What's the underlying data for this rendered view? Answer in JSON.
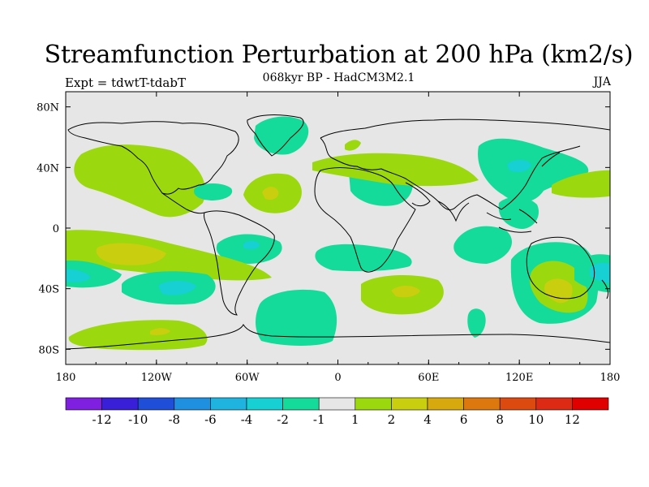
{
  "title": "Streamfunction Perturbation at 200 hPa (km2/s)",
  "subtitle": "068kyr BP - HadCM3M2.1",
  "left_note": "Expt = tdwtT-tdabT",
  "right_note": "JJA",
  "axes": {
    "x_ticks": [
      "180",
      "120W",
      "60W",
      "0",
      "60E",
      "120E",
      "180"
    ],
    "x_values": [
      -180,
      -120,
      -60,
      0,
      60,
      120,
      180
    ],
    "y_ticks": [
      "80N",
      "40N",
      "0",
      "40S",
      "80S"
    ],
    "y_values": [
      80,
      40,
      0,
      -40,
      -80
    ]
  },
  "colorbar": {
    "labels": [
      "-12",
      "-10",
      "-8",
      "-6",
      "-4",
      "-2",
      "-1",
      "1",
      "2",
      "4",
      "6",
      "8",
      "10",
      "12"
    ],
    "colors": [
      "#7f1fdf",
      "#3a1fd8",
      "#1f4fd8",
      "#1f8fe0",
      "#1fb3e0",
      "#16d0d4",
      "#14da9a",
      "#e6e6e6",
      "#9bd80e",
      "#c9cf0e",
      "#d8a90e",
      "#dc780e",
      "#dd4a10",
      "#dd2a14",
      "#e00000"
    ]
  },
  "chart_data": {
    "type": "map-contour",
    "title": "Streamfunction Perturbation at 200 hPa (km2/s)",
    "xlim": [
      -180,
      180
    ],
    "ylim": [
      -90,
      90
    ],
    "levels": [
      -12,
      -10,
      -8,
      -6,
      -4,
      -2,
      -1,
      1,
      2,
      4,
      6,
      8,
      10,
      12
    ],
    "regions": [
      {
        "name": "north-pacific-positive",
        "level": "1-2",
        "lon": -140,
        "lat": 40
      },
      {
        "name": "central-atlantic-positive",
        "level": "2-4",
        "lon": -45,
        "lat": 25
      },
      {
        "name": "greenland-negative",
        "level": "-2--1",
        "lon": -30,
        "lat": 68
      },
      {
        "name": "caribbean-negative",
        "level": "-2--1",
        "lon": -85,
        "lat": 25
      },
      {
        "name": "mediterranean-negative",
        "level": "-2--1",
        "lon": 25,
        "lat": 35
      },
      {
        "name": "east-asia-negative",
        "level": "-4--2",
        "lon": 125,
        "lat": 40
      },
      {
        "name": "south-pacific-positive",
        "level": "2-4",
        "lon": -145,
        "lat": -15
      },
      {
        "name": "south-pacific-negative",
        "level": "-4--2",
        "lon": -95,
        "lat": -38
      },
      {
        "name": "south-atlantic-negative",
        "level": "-2--1",
        "lon": -25,
        "lat": -60
      },
      {
        "name": "south-indian-positive",
        "level": "2-4",
        "lon": 40,
        "lat": -40
      },
      {
        "name": "australia-positive",
        "level": "2-4",
        "lon": 140,
        "lat": -40
      },
      {
        "name": "antarctic-pacific-positive",
        "level": "2-4",
        "lon": -115,
        "lat": -70
      }
    ]
  }
}
